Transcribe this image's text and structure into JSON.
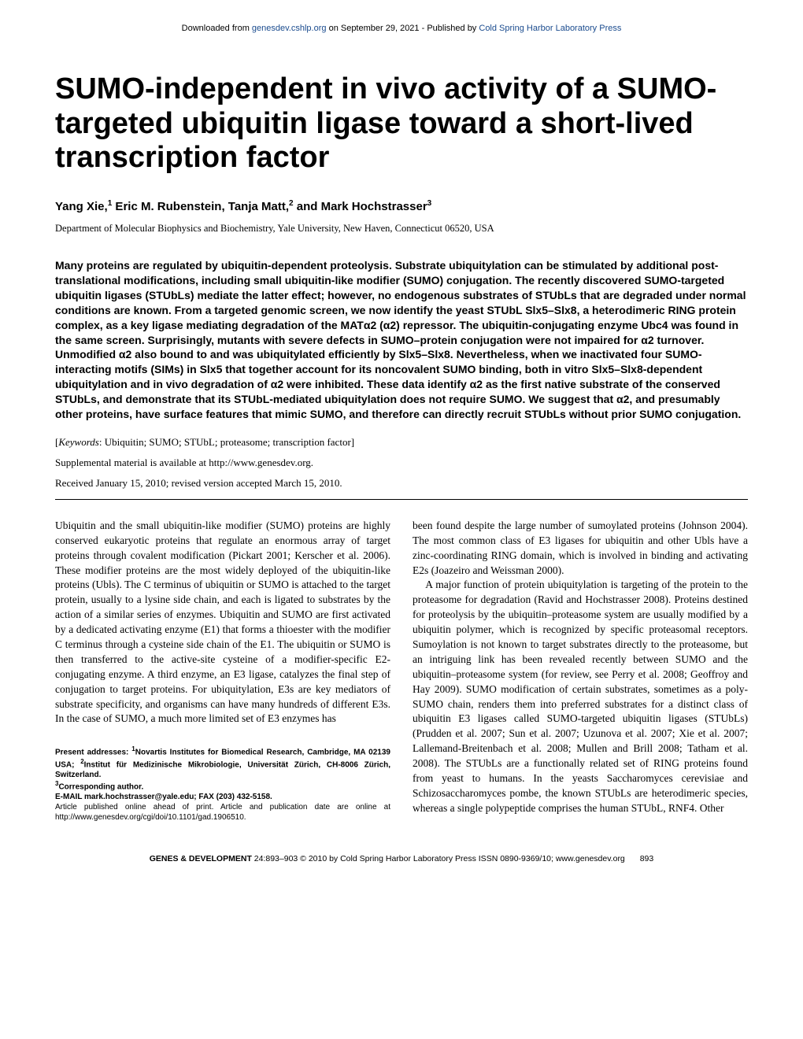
{
  "header": {
    "download_prefix": "Downloaded from ",
    "download_link_text": "genesdev.cshlp.org",
    "download_mid": " on September 29, 2021 - Published by ",
    "publisher_link_text": "Cold Spring Harbor Laboratory Press"
  },
  "title": "SUMO-independent in vivo activity of a SUMO-targeted ubiquitin ligase toward a short-lived transcription factor",
  "authors_html": "Yang Xie,<sup>1</sup> Eric M. Rubenstein, Tanja Matt,<sup>2</sup> and Mark Hochstrasser<sup>3</sup>",
  "affiliation": "Department of Molecular Biophysics and Biochemistry, Yale University, New Haven, Connecticut 06520, USA",
  "abstract": "Many proteins are regulated by ubiquitin-dependent proteolysis. Substrate ubiquitylation can be stimulated by additional post-translational modifications, including small ubiquitin-like modifier (SUMO) conjugation. The recently discovered SUMO-targeted ubiquitin ligases (STUbLs) mediate the latter effect; however, no endogenous substrates of STUbLs that are degraded under normal conditions are known. From a targeted genomic screen, we now identify the yeast STUbL Slx5–Slx8, a heterodimeric RING protein complex, as a key ligase mediating degradation of the MATα2 (α2) repressor. The ubiquitin-conjugating enzyme Ubc4 was found in the same screen. Surprisingly, mutants with severe defects in SUMO–protein conjugation were not impaired for α2 turnover. Unmodified α2 also bound to and was ubiquitylated efficiently by Slx5–Slx8. Nevertheless, when we inactivated four SUMO-interacting motifs (SIMs) in Slx5 that together account for its noncovalent SUMO binding, both in vitro Slx5–Slx8-dependent ubiquitylation and in vivo degradation of α2 were inhibited. These data identify α2 as the first native substrate of the conserved STUbLs, and demonstrate that its STUbL-mediated ubiquitylation does not require SUMO. We suggest that α2, and presumably other proteins, have surface features that mimic SUMO, and therefore can directly recruit STUbLs without prior SUMO conjugation.",
  "keywords_label": "Keywords",
  "keywords_text": ": Ubiquitin; SUMO; STUbL; proteasome; transcription factor]",
  "supplemental": "Supplemental material is available at http://www.genesdev.org.",
  "received": "Received January 15, 2010; revised version accepted March 15, 2010.",
  "body": {
    "left_p1": "Ubiquitin and the small ubiquitin-like modifier (SUMO) proteins are highly conserved eukaryotic proteins that regulate an enormous array of target proteins through covalent modification (Pickart 2001; Kerscher et al. 2006). These modifier proteins are the most widely deployed of the ubiquitin-like proteins (Ubls). The C terminus of ubiquitin or SUMO is attached to the target protein, usually to a lysine side chain, and each is ligated to substrates by the action of a similar series of enzymes. Ubiquitin and SUMO are first activated by a dedicated activating enzyme (E1) that forms a thioester with the modifier C terminus through a cysteine side chain of the E1. The ubiquitin or SUMO is then transferred to the active-site cysteine of a modifier-specific E2-conjugating enzyme. A third enzyme, an E3 ligase, catalyzes the final step of conjugation to target proteins. For ubiquitylation, E3s are key mediators of substrate specificity, and organisms can have many hundreds of different E3s. In the case of SUMO, a much more limited set of E3 enzymes has",
    "right_p1": "been found despite the large number of sumoylated proteins (Johnson 2004). The most common class of E3 ligases for ubiquitin and other Ubls have a zinc-coordinating RING domain, which is involved in binding and activating E2s (Joazeiro and Weissman 2000).",
    "right_p2": "A major function of protein ubiquitylation is targeting of the protein to the proteasome for degradation (Ravid and Hochstrasser 2008). Proteins destined for proteolysis by the ubiquitin–proteasome system are usually modified by a ubiquitin polymer, which is recognized by specific proteasomal receptors. Sumoylation is not known to target substrates directly to the proteasome, but an intriguing link has been revealed recently between SUMO and the ubiquitin–proteasome system (for review, see Perry et al. 2008; Geoffroy and Hay 2009). SUMO modification of certain substrates, sometimes as a poly-SUMO chain, renders them into preferred substrates for a distinct class of ubiquitin E3 ligases called SUMO-targeted ubiquitin ligases (STUbLs) (Prudden et al. 2007; Sun et al. 2007; Uzunova et al. 2007; Xie et al. 2007; Lallemand-Breitenbach et al. 2008; Mullen and Brill 2008; Tatham et al. 2008). The STUbLs are a functionally related set of RING proteins found from yeast to humans. In the yeasts Saccharomyces cerevisiae and Schizosaccharomyces pombe, the known STUbLs are heterodimeric species, whereas a single polypeptide comprises the human STUbL, RNF4. Other"
  },
  "footnotes": {
    "present_html": "Present addresses: <sup>1</sup>Novartis Institutes for Biomedical Research, Cambridge, MA 02139 USA; <sup>2</sup>Institut für Medizinische Mikrobiologie, Universität Zürich, CH-8006 Zürich, Switzerland.",
    "corresponding_html": "<sup>3</sup>Corresponding author.",
    "email": "E-MAIL mark.hochstrasser@yale.edu; FAX (203) 432-5158.",
    "article_note": "Article published online ahead of print. Article and publication date are online at http://www.genesdev.org/cgi/doi/10.1101/gad.1906510."
  },
  "footer": {
    "journal": "GENES & DEVELOPMENT",
    "citation": " 24:893–903 © 2010 by Cold Spring Harbor Laboratory Press ISSN 0890-9369/10; www.genesdev.org",
    "page": "893"
  },
  "colors": {
    "link": "#1a4b8e",
    "text": "#000000",
    "background": "#ffffff"
  }
}
